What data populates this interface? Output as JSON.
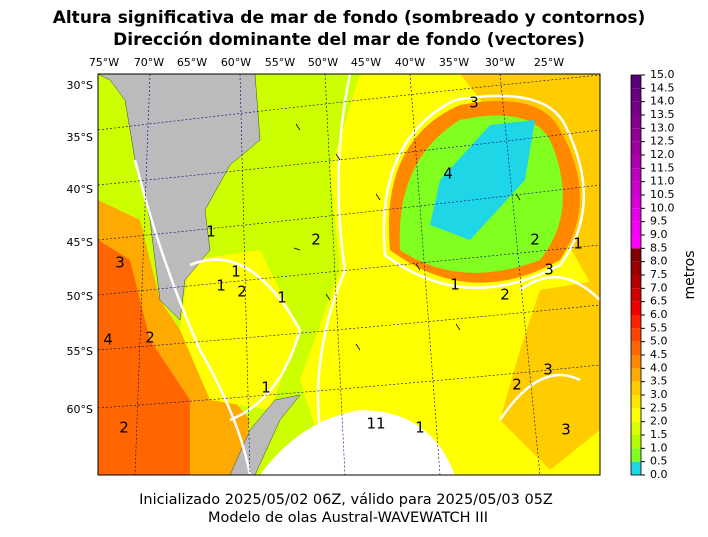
{
  "header": {
    "title": "Altura significativa de mar de fondo (sombreado y contornos)",
    "subtitle": "Dirección dominante del mar de fondo (vectores)"
  },
  "map": {
    "lon_labels": [
      "75°W",
      "70°W",
      "65°W",
      "60°W",
      "55°W",
      "50°W",
      "45°W",
      "40°W",
      "35°W",
      "30°W",
      "25°W"
    ],
    "lat_labels": [
      "30°S",
      "35°S",
      "40°S",
      "45°S",
      "50°S",
      "55°S",
      "60°S"
    ],
    "contour_labels": [
      "3",
      "4",
      "2",
      "2",
      "1",
      "1",
      "1",
      "2",
      "3",
      "3",
      "2",
      "1",
      "1",
      "1",
      "4",
      "2",
      "2",
      "3",
      "11",
      "1",
      "2",
      "3",
      "1"
    ]
  },
  "colorbar": {
    "label": "metros",
    "ticks": [
      {
        "value": 0,
        "label": "0.0"
      },
      {
        "value": 0.5,
        "label": "0.5"
      },
      {
        "value": 1,
        "label": "1.0"
      },
      {
        "value": 1.5,
        "label": "1.5"
      },
      {
        "value": 2,
        "label": "2.0"
      },
      {
        "value": 2.5,
        "label": "2.5"
      },
      {
        "value": 3,
        "label": "3.0"
      },
      {
        "value": 3.5,
        "label": "3.5"
      },
      {
        "value": 4,
        "label": "4.0"
      },
      {
        "value": 4.5,
        "label": "4.5"
      },
      {
        "value": 5,
        "label": "5.0"
      },
      {
        "value": 5.5,
        "label": "5.5"
      },
      {
        "value": 6,
        "label": "6.0"
      },
      {
        "value": 6.5,
        "label": "6.5"
      },
      {
        "value": 7,
        "label": "7.0"
      },
      {
        "value": 7.5,
        "label": "7.5"
      },
      {
        "value": 8,
        "label": "8.0"
      },
      {
        "value": 8.5,
        "label": "8.5"
      },
      {
        "value": 9,
        "label": "9.0"
      },
      {
        "value": 9.5,
        "label": "9.5"
      },
      {
        "value": 10,
        "label": "10.0"
      },
      {
        "value": 10.5,
        "label": "10.5"
      },
      {
        "value": 11,
        "label": "11.0"
      },
      {
        "value": 11.5,
        "label": "11.5"
      },
      {
        "value": 12,
        "label": "12.0"
      },
      {
        "value": 12.5,
        "label": "12.5"
      },
      {
        "value": 13,
        "label": "13.0"
      },
      {
        "value": 13.5,
        "label": "13.5"
      },
      {
        "value": 14,
        "label": "14.0"
      },
      {
        "value": 14.5,
        "label": "14.5"
      },
      {
        "value": 15,
        "label": "15.0"
      }
    ],
    "colors": [
      "#1fd6e6",
      "#80ff20",
      "#b3ff00",
      "#d9ff00",
      "#ffff00",
      "#ffe600",
      "#ffcc00",
      "#ffaa00",
      "#ff8800",
      "#ff6600",
      "#ff4400",
      "#ff2200",
      "#ee0000",
      "#cc0000",
      "#b00000",
      "#990000",
      "#800000",
      "#ff00ff",
      "#f200f2",
      "#e400e4",
      "#d600d6",
      "#c800c8",
      "#ba00ba",
      "#ac00ac",
      "#9e009e",
      "#900090",
      "#82008a",
      "#740084",
      "#66007e",
      "#580078"
    ]
  },
  "footer": {
    "line1": "Inicializado 2025/05/02 06Z, válido para 2025/05/03 05Z",
    "line2": "Modelo de olas Austral-WAVEWATCH III"
  }
}
